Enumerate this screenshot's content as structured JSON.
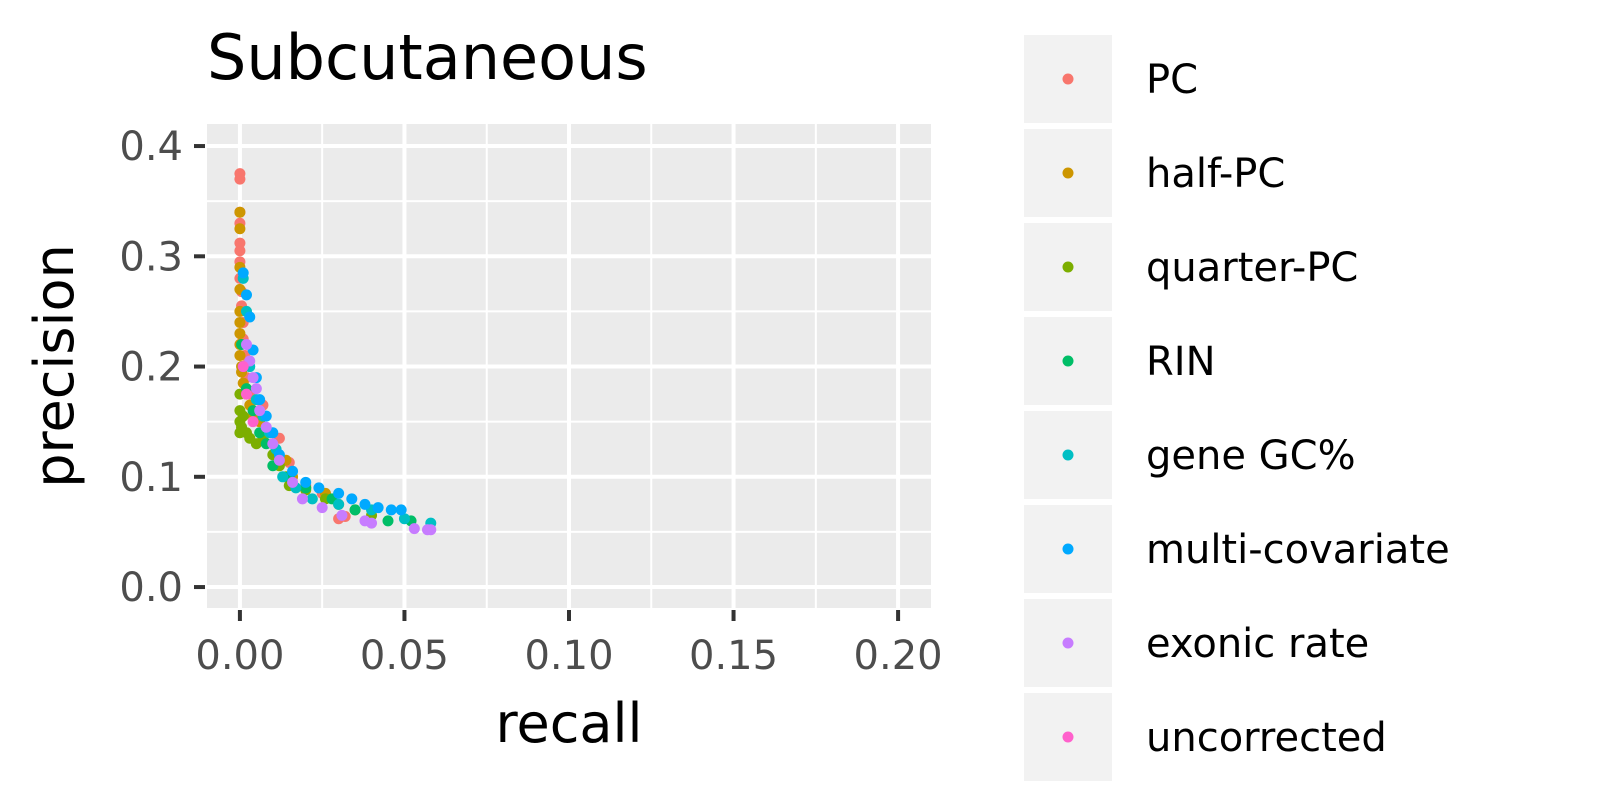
{
  "chart_data": {
    "type": "scatter",
    "title": "Subcutaneous",
    "xlabel": "recall",
    "ylabel": "precision",
    "xlim": [
      -0.01,
      0.21
    ],
    "ylim": [
      -0.019,
      0.42
    ],
    "x_ticks": [
      0.0,
      0.05,
      0.1,
      0.15,
      0.2
    ],
    "x_tick_labels": [
      "0.00",
      "0.05",
      "0.10",
      "0.15",
      "0.20"
    ],
    "y_ticks": [
      0.0,
      0.1,
      0.2,
      0.3,
      0.4
    ],
    "y_tick_labels": [
      "0.0",
      "0.1",
      "0.2",
      "0.3",
      "0.4"
    ],
    "grid": true,
    "legend_position": "right",
    "panel_background": "#ebebeb",
    "series": [
      {
        "name": "PC",
        "color": "#f8766d",
        "points": [
          [
            0.0,
            0.375
          ],
          [
            0.0,
            0.37
          ],
          [
            0.0,
            0.34
          ],
          [
            0.0,
            0.33
          ],
          [
            0.0,
            0.312
          ],
          [
            0.0,
            0.305
          ],
          [
            0.0,
            0.295
          ],
          [
            0.0,
            0.28
          ],
          [
            0.0005,
            0.268
          ],
          [
            0.0005,
            0.255
          ],
          [
            0.001,
            0.24
          ],
          [
            0.001,
            0.225
          ],
          [
            0.0015,
            0.21
          ],
          [
            0.002,
            0.19
          ],
          [
            0.003,
            0.175
          ],
          [
            0.007,
            0.165
          ],
          [
            0.012,
            0.135
          ],
          [
            0.015,
            0.113
          ],
          [
            0.02,
            0.092
          ],
          [
            0.025,
            0.085
          ],
          [
            0.03,
            0.062
          ],
          [
            0.032,
            0.064
          ]
        ]
      },
      {
        "name": "half-PC",
        "color": "#cd9600",
        "points": [
          [
            0.0,
            0.34
          ],
          [
            0.0,
            0.325
          ],
          [
            0.0,
            0.29
          ],
          [
            0.0,
            0.27
          ],
          [
            0.0,
            0.25
          ],
          [
            0.0,
            0.24
          ],
          [
            0.0,
            0.23
          ],
          [
            0.0,
            0.22
          ],
          [
            0.0,
            0.21
          ],
          [
            0.0005,
            0.2
          ],
          [
            0.0005,
            0.195
          ],
          [
            0.001,
            0.185
          ],
          [
            0.002,
            0.175
          ],
          [
            0.003,
            0.165
          ],
          [
            0.004,
            0.155
          ],
          [
            0.006,
            0.15
          ],
          [
            0.008,
            0.14
          ],
          [
            0.01,
            0.13
          ],
          [
            0.014,
            0.115
          ],
          [
            0.016,
            0.1
          ],
          [
            0.02,
            0.09
          ],
          [
            0.026,
            0.085
          ],
          [
            0.03,
            0.075
          ]
        ]
      },
      {
        "name": "quarter-PC",
        "color": "#7cae00",
        "points": [
          [
            0.0,
            0.175
          ],
          [
            0.0,
            0.16
          ],
          [
            0.0,
            0.15
          ],
          [
            0.0,
            0.14
          ],
          [
            0.0005,
            0.145
          ],
          [
            0.001,
            0.155
          ],
          [
            0.002,
            0.14
          ],
          [
            0.003,
            0.135
          ],
          [
            0.005,
            0.13
          ],
          [
            0.007,
            0.135
          ],
          [
            0.01,
            0.12
          ],
          [
            0.012,
            0.11
          ],
          [
            0.014,
            0.1
          ],
          [
            0.015,
            0.092
          ],
          [
            0.02,
            0.088
          ],
          [
            0.026,
            0.08
          ],
          [
            0.035,
            0.07
          ],
          [
            0.04,
            0.065
          ]
        ]
      },
      {
        "name": "RIN",
        "color": "#00be67",
        "points": [
          [
            0.0005,
            0.22
          ],
          [
            0.001,
            0.2
          ],
          [
            0.002,
            0.18
          ],
          [
            0.004,
            0.16
          ],
          [
            0.006,
            0.14
          ],
          [
            0.008,
            0.13
          ],
          [
            0.01,
            0.11
          ],
          [
            0.015,
            0.1
          ],
          [
            0.02,
            0.09
          ],
          [
            0.028,
            0.08
          ],
          [
            0.035,
            0.07
          ],
          [
            0.045,
            0.06
          ],
          [
            0.052,
            0.06
          ]
        ]
      },
      {
        "name": "gene GC%",
        "color": "#00bfc4",
        "points": [
          [
            0.001,
            0.28
          ],
          [
            0.002,
            0.25
          ],
          [
            0.003,
            0.2
          ],
          [
            0.005,
            0.17
          ],
          [
            0.007,
            0.155
          ],
          [
            0.009,
            0.14
          ],
          [
            0.011,
            0.125
          ],
          [
            0.013,
            0.1
          ],
          [
            0.017,
            0.09
          ],
          [
            0.022,
            0.08
          ],
          [
            0.03,
            0.075
          ],
          [
            0.04,
            0.07
          ],
          [
            0.05,
            0.062
          ],
          [
            0.058,
            0.058
          ]
        ]
      },
      {
        "name": "multi-covariate",
        "color": "#00a9ff",
        "points": [
          [
            0.001,
            0.285
          ],
          [
            0.002,
            0.265
          ],
          [
            0.003,
            0.245
          ],
          [
            0.004,
            0.215
          ],
          [
            0.005,
            0.19
          ],
          [
            0.006,
            0.17
          ],
          [
            0.008,
            0.155
          ],
          [
            0.01,
            0.14
          ],
          [
            0.012,
            0.12
          ],
          [
            0.016,
            0.105
          ],
          [
            0.02,
            0.095
          ],
          [
            0.024,
            0.09
          ],
          [
            0.03,
            0.085
          ],
          [
            0.034,
            0.08
          ],
          [
            0.038,
            0.075
          ],
          [
            0.042,
            0.072
          ],
          [
            0.046,
            0.07
          ],
          [
            0.049,
            0.07
          ]
        ]
      },
      {
        "name": "exonic rate",
        "color": "#c77cff",
        "points": [
          [
            0.002,
            0.22
          ],
          [
            0.003,
            0.205
          ],
          [
            0.004,
            0.19
          ],
          [
            0.005,
            0.18
          ],
          [
            0.006,
            0.16
          ],
          [
            0.008,
            0.145
          ],
          [
            0.01,
            0.13
          ],
          [
            0.012,
            0.115
          ],
          [
            0.016,
            0.095
          ],
          [
            0.019,
            0.08
          ],
          [
            0.025,
            0.072
          ],
          [
            0.031,
            0.065
          ],
          [
            0.038,
            0.06
          ],
          [
            0.04,
            0.058
          ],
          [
            0.053,
            0.053
          ],
          [
            0.057,
            0.052
          ],
          [
            0.058,
            0.052
          ]
        ]
      },
      {
        "name": "uncorrected",
        "color": "#ff61cc",
        "points": [
          [
            0.001,
            0.2
          ],
          [
            0.002,
            0.175
          ],
          [
            0.004,
            0.15
          ]
        ]
      }
    ]
  }
}
